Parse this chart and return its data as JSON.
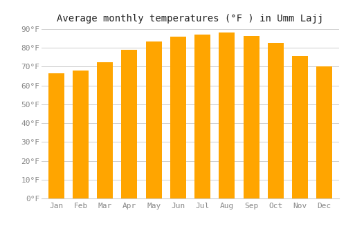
{
  "months": [
    "Jan",
    "Feb",
    "Mar",
    "Apr",
    "May",
    "Jun",
    "Jul",
    "Aug",
    "Sep",
    "Oct",
    "Nov",
    "Dec"
  ],
  "values": [
    66.5,
    68,
    72.5,
    79,
    83.5,
    86,
    87,
    88,
    86.5,
    82.5,
    75.5,
    70
  ],
  "bar_color": "#FFA500",
  "bar_color_light": "#FFB830",
  "background_color": "#FFFFFF",
  "grid_color": "#CCCCCC",
  "title": "Average monthly temperatures (°F ) in Umm Lajj",
  "title_fontsize": 10,
  "tick_fontsize": 8,
  "ylim": [
    0,
    90
  ],
  "yticks": [
    0,
    10,
    20,
    30,
    40,
    50,
    60,
    70,
    80,
    90
  ],
  "ytick_labels": [
    "0°F",
    "10°F",
    "20°F",
    "30°F",
    "40°F",
    "50°F",
    "60°F",
    "70°F",
    "80°F",
    "90°F"
  ],
  "tick_color": "#888888",
  "spine_color": "#333333"
}
